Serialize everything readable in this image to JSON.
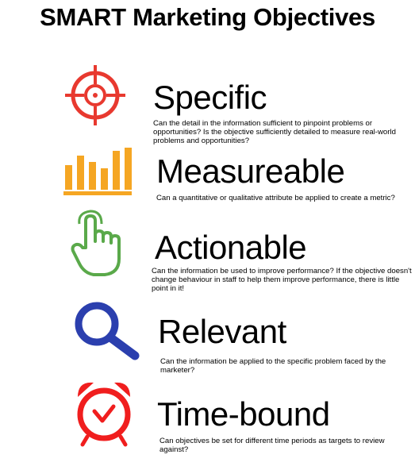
{
  "title": "SMART Marketing Objectives",
  "colors": {
    "specific": "#e8392f",
    "measureable": "#f5a623",
    "actionable": "#5aa94a",
    "relevant": "#2b3fae",
    "timebound": "#f01e1e"
  },
  "items": [
    {
      "icon": "target-icon",
      "heading": "Specific",
      "description": "Can the detail in the information sufficient to pinpoint problems or opportunities? Is the objective sufficiently detailed to measure real-world problems and opportunities?"
    },
    {
      "icon": "bar-chart-icon",
      "heading": "Measureable",
      "description": "Can a quantitative or qualitative attribute be applied to create a metric?"
    },
    {
      "icon": "pointing-hand-icon",
      "heading": "Actionable",
      "description": "Can the information be used to improve performance? If the objective doesn't change behaviour in staff to help them improve performance, there is little point in it!"
    },
    {
      "icon": "magnifying-glass-icon",
      "heading": "Relevant",
      "description": "Can the information be applied to the specific problem faced by the marketer?"
    },
    {
      "icon": "alarm-clock-icon",
      "heading": "Time-bound",
      "description": "Can objectives be set for different time periods as targets to review against?"
    }
  ]
}
